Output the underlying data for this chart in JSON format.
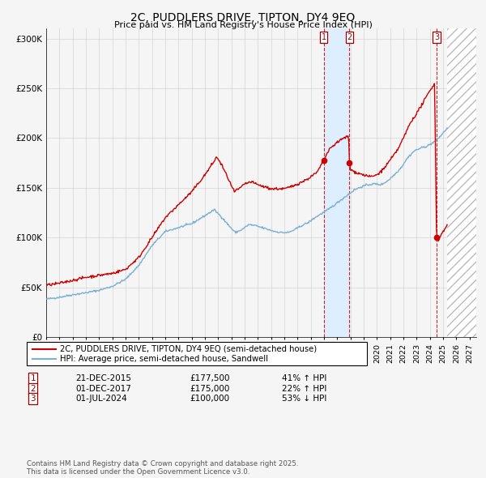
{
  "title": "2C, PUDDLERS DRIVE, TIPTON, DY4 9EQ",
  "subtitle": "Price paid vs. HM Land Registry's House Price Index (HPI)",
  "legend_line1": "2C, PUDDLERS DRIVE, TIPTON, DY4 9EQ (semi-detached house)",
  "legend_line2": "HPI: Average price, semi-detached house, Sandwell",
  "footer": "Contains HM Land Registry data © Crown copyright and database right 2025.\nThis data is licensed under the Open Government Licence v3.0.",
  "ylim": [
    0,
    310000
  ],
  "yticks": [
    0,
    50000,
    100000,
    150000,
    200000,
    250000,
    300000
  ],
  "ytick_labels": [
    "£0",
    "£50K",
    "£100K",
    "£150K",
    "£200K",
    "£250K",
    "£300K"
  ],
  "xlim_start": 1995.0,
  "xlim_end": 2027.5,
  "transactions": [
    {
      "label": "1",
      "date": "21-DEC-2015",
      "year": 2015.97,
      "price": 177500,
      "pct": "41%",
      "dir": "↑"
    },
    {
      "label": "2",
      "date": "01-DEC-2017",
      "year": 2017.92,
      "price": 175000,
      "pct": "22%",
      "dir": "↑"
    },
    {
      "label": "3",
      "date": "01-JUL-2024",
      "year": 2024.5,
      "price": 100000,
      "pct": "53%",
      "dir": "↓"
    }
  ],
  "highlight_band": [
    2015.97,
    2017.92
  ],
  "future_hatch_start": 2025.3,
  "red_color": "#cc0000",
  "blue_color": "#7bafd4",
  "highlight_color": "#ddeeff",
  "background_color": "#f5f5f5",
  "grid_color": "#cccccc",
  "hpi_keypoints": [
    [
      1995.0,
      38000
    ],
    [
      1996.0,
      40000
    ],
    [
      1997.0,
      42500
    ],
    [
      1998.0,
      44500
    ],
    [
      1999.0,
      47000
    ],
    [
      2000.0,
      51000
    ],
    [
      2001.0,
      58000
    ],
    [
      2002.0,
      72000
    ],
    [
      2003.0,
      92000
    ],
    [
      2004.0,
      106000
    ],
    [
      2005.0,
      110000
    ],
    [
      2006.0,
      114000
    ],
    [
      2007.0,
      122000
    ],
    [
      2007.7,
      128000
    ],
    [
      2008.3,
      120000
    ],
    [
      2008.8,
      112000
    ],
    [
      2009.3,
      105000
    ],
    [
      2009.8,
      108000
    ],
    [
      2010.3,
      113000
    ],
    [
      2010.8,
      112000
    ],
    [
      2011.3,
      110000
    ],
    [
      2011.8,
      108000
    ],
    [
      2012.3,
      106000
    ],
    [
      2012.8,
      105000
    ],
    [
      2013.3,
      105000
    ],
    [
      2013.8,
      108000
    ],
    [
      2014.3,
      112000
    ],
    [
      2014.8,
      115000
    ],
    [
      2015.3,
      120000
    ],
    [
      2015.8,
      124000
    ],
    [
      2016.3,
      128000
    ],
    [
      2016.8,
      133000
    ],
    [
      2017.3,
      138000
    ],
    [
      2017.8,
      143000
    ],
    [
      2018.3,
      148000
    ],
    [
      2018.8,
      151000
    ],
    [
      2019.3,
      153000
    ],
    [
      2019.8,
      154000
    ],
    [
      2020.3,
      153000
    ],
    [
      2020.8,
      157000
    ],
    [
      2021.3,
      163000
    ],
    [
      2021.8,
      170000
    ],
    [
      2022.3,
      180000
    ],
    [
      2022.8,
      187000
    ],
    [
      2023.3,
      190000
    ],
    [
      2023.8,
      192000
    ],
    [
      2024.3,
      196000
    ],
    [
      2024.8,
      202000
    ],
    [
      2025.3,
      210000
    ]
  ],
  "red_keypoints": [
    [
      1995.0,
      52000
    ],
    [
      1996.0,
      54000
    ],
    [
      1997.0,
      57000
    ],
    [
      1998.0,
      60000
    ],
    [
      1999.0,
      62000
    ],
    [
      2000.0,
      64000
    ],
    [
      2001.0,
      68000
    ],
    [
      2002.0,
      80000
    ],
    [
      2003.0,
      100000
    ],
    [
      2004.0,
      120000
    ],
    [
      2005.0,
      133000
    ],
    [
      2006.0,
      146000
    ],
    [
      2007.0,
      163000
    ],
    [
      2007.5,
      173000
    ],
    [
      2007.9,
      181000
    ],
    [
      2008.3,
      172000
    ],
    [
      2008.8,
      158000
    ],
    [
      2009.2,
      146000
    ],
    [
      2009.7,
      150000
    ],
    [
      2010.0,
      154000
    ],
    [
      2010.5,
      156000
    ],
    [
      2011.0,
      153000
    ],
    [
      2011.5,
      151000
    ],
    [
      2012.0,
      149000
    ],
    [
      2012.5,
      149000
    ],
    [
      2013.0,
      149000
    ],
    [
      2013.5,
      151000
    ],
    [
      2014.0,
      154000
    ],
    [
      2014.5,
      157000
    ],
    [
      2015.0,
      161000
    ],
    [
      2015.5,
      166000
    ],
    [
      2015.97,
      177500
    ],
    [
      2016.2,
      184000
    ],
    [
      2016.5,
      190000
    ],
    [
      2017.0,
      196000
    ],
    [
      2017.5,
      200000
    ],
    [
      2017.85,
      202000
    ],
    [
      2017.92,
      175000
    ],
    [
      2018.0,
      168000
    ],
    [
      2018.5,
      165000
    ],
    [
      2019.0,
      163000
    ],
    [
      2019.5,
      161000
    ],
    [
      2020.0,
      163000
    ],
    [
      2020.5,
      169000
    ],
    [
      2021.0,
      178000
    ],
    [
      2021.5,
      187000
    ],
    [
      2022.0,
      200000
    ],
    [
      2022.5,
      215000
    ],
    [
      2023.0,
      225000
    ],
    [
      2023.5,
      236000
    ],
    [
      2024.0,
      248000
    ],
    [
      2024.35,
      255000
    ],
    [
      2024.5,
      100000
    ],
    [
      2024.65,
      97000
    ],
    [
      2024.9,
      105000
    ],
    [
      2025.1,
      108000
    ],
    [
      2025.3,
      112000
    ]
  ]
}
